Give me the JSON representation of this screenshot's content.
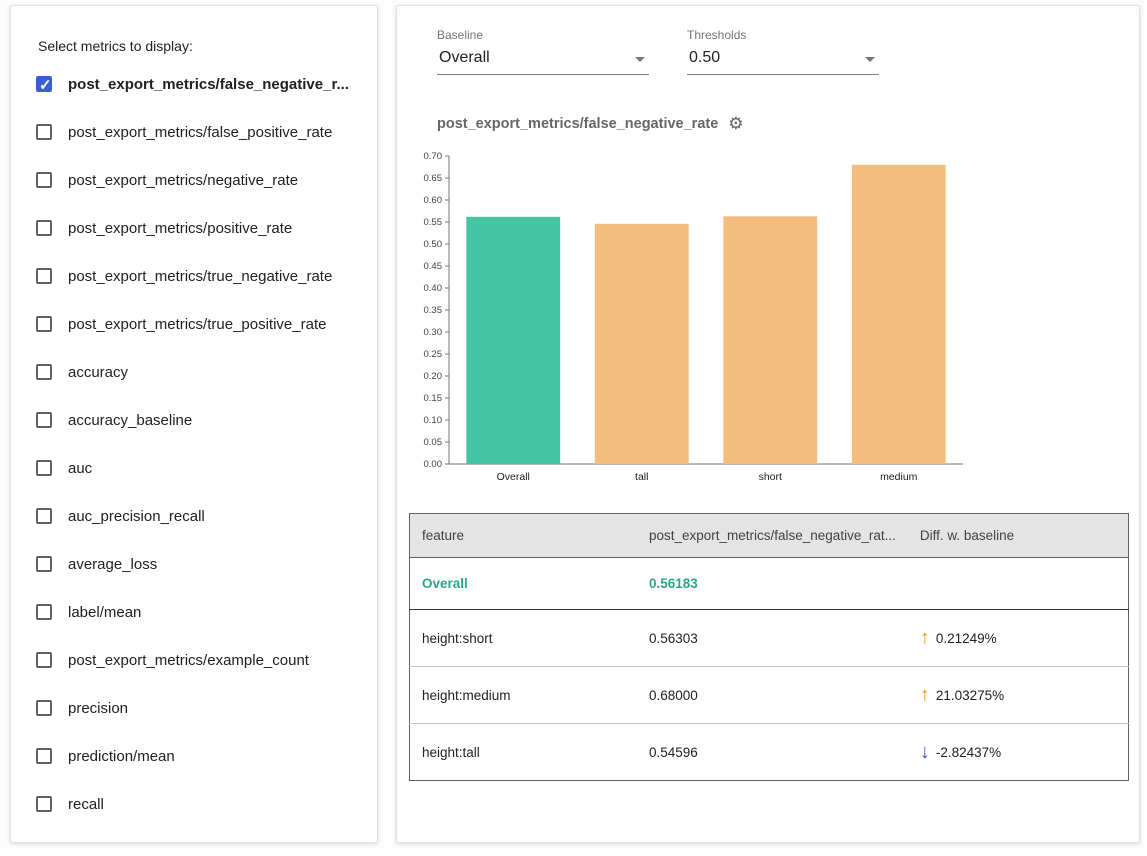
{
  "left_panel": {
    "title": "Select metrics to display:",
    "metrics": [
      {
        "label": "post_export_metrics/false_negative_r...",
        "checked": true
      },
      {
        "label": "post_export_metrics/false_positive_rate",
        "checked": false
      },
      {
        "label": "post_export_metrics/negative_rate",
        "checked": false
      },
      {
        "label": "post_export_metrics/positive_rate",
        "checked": false
      },
      {
        "label": "post_export_metrics/true_negative_rate",
        "checked": false
      },
      {
        "label": "post_export_metrics/true_positive_rate",
        "checked": false
      },
      {
        "label": "accuracy",
        "checked": false
      },
      {
        "label": "accuracy_baseline",
        "checked": false
      },
      {
        "label": "auc",
        "checked": false
      },
      {
        "label": "auc_precision_recall",
        "checked": false
      },
      {
        "label": "average_loss",
        "checked": false
      },
      {
        "label": "label/mean",
        "checked": false
      },
      {
        "label": "post_export_metrics/example_count",
        "checked": false
      },
      {
        "label": "precision",
        "checked": false
      },
      {
        "label": "prediction/mean",
        "checked": false
      },
      {
        "label": "recall",
        "checked": false
      }
    ]
  },
  "controls": {
    "baseline_label": "Baseline",
    "baseline_value": "Overall",
    "thresholds_label": "Thresholds",
    "thresholds_value": "0.50"
  },
  "chart": {
    "title": "post_export_metrics/false_negative_rate"
  },
  "chart_data": {
    "type": "bar",
    "title": "post_export_metrics/false_negative_rate",
    "categories": [
      "Overall",
      "tall",
      "short",
      "medium"
    ],
    "values": [
      0.56183,
      0.54596,
      0.56303,
      0.68
    ],
    "bar_colors": [
      "#45c4a3",
      "#f2be7e",
      "#f2be7e",
      "#f2be7e"
    ],
    "xlabel": "",
    "ylabel": "",
    "ylim": [
      0,
      0.7
    ],
    "ytick_step": 0.05,
    "grid": false,
    "legend": "none"
  },
  "table": {
    "headers": [
      "feature",
      "post_export_metrics/false_negative_rat...",
      "Diff. w. baseline"
    ],
    "rows": [
      {
        "feature": "Overall",
        "value": "0.56183",
        "diff": "",
        "direction": "",
        "baseline": true
      },
      {
        "feature": "height:short",
        "value": "0.56303",
        "diff": "0.21249%",
        "direction": "up",
        "baseline": false
      },
      {
        "feature": "height:medium",
        "value": "0.68000",
        "diff": "21.03275%",
        "direction": "up",
        "baseline": false
      },
      {
        "feature": "height:tall",
        "value": "0.54596",
        "diff": "-2.82437%",
        "direction": "down",
        "baseline": false
      }
    ]
  },
  "colors": {
    "baseline_bar": "#45c4a3",
    "slice_bar": "#f2be7e",
    "checkbox_checked": "#3b5fce",
    "baseline_text": "#2aa789",
    "up_arrow": "#f29900",
    "down_arrow": "#3d51d9"
  }
}
